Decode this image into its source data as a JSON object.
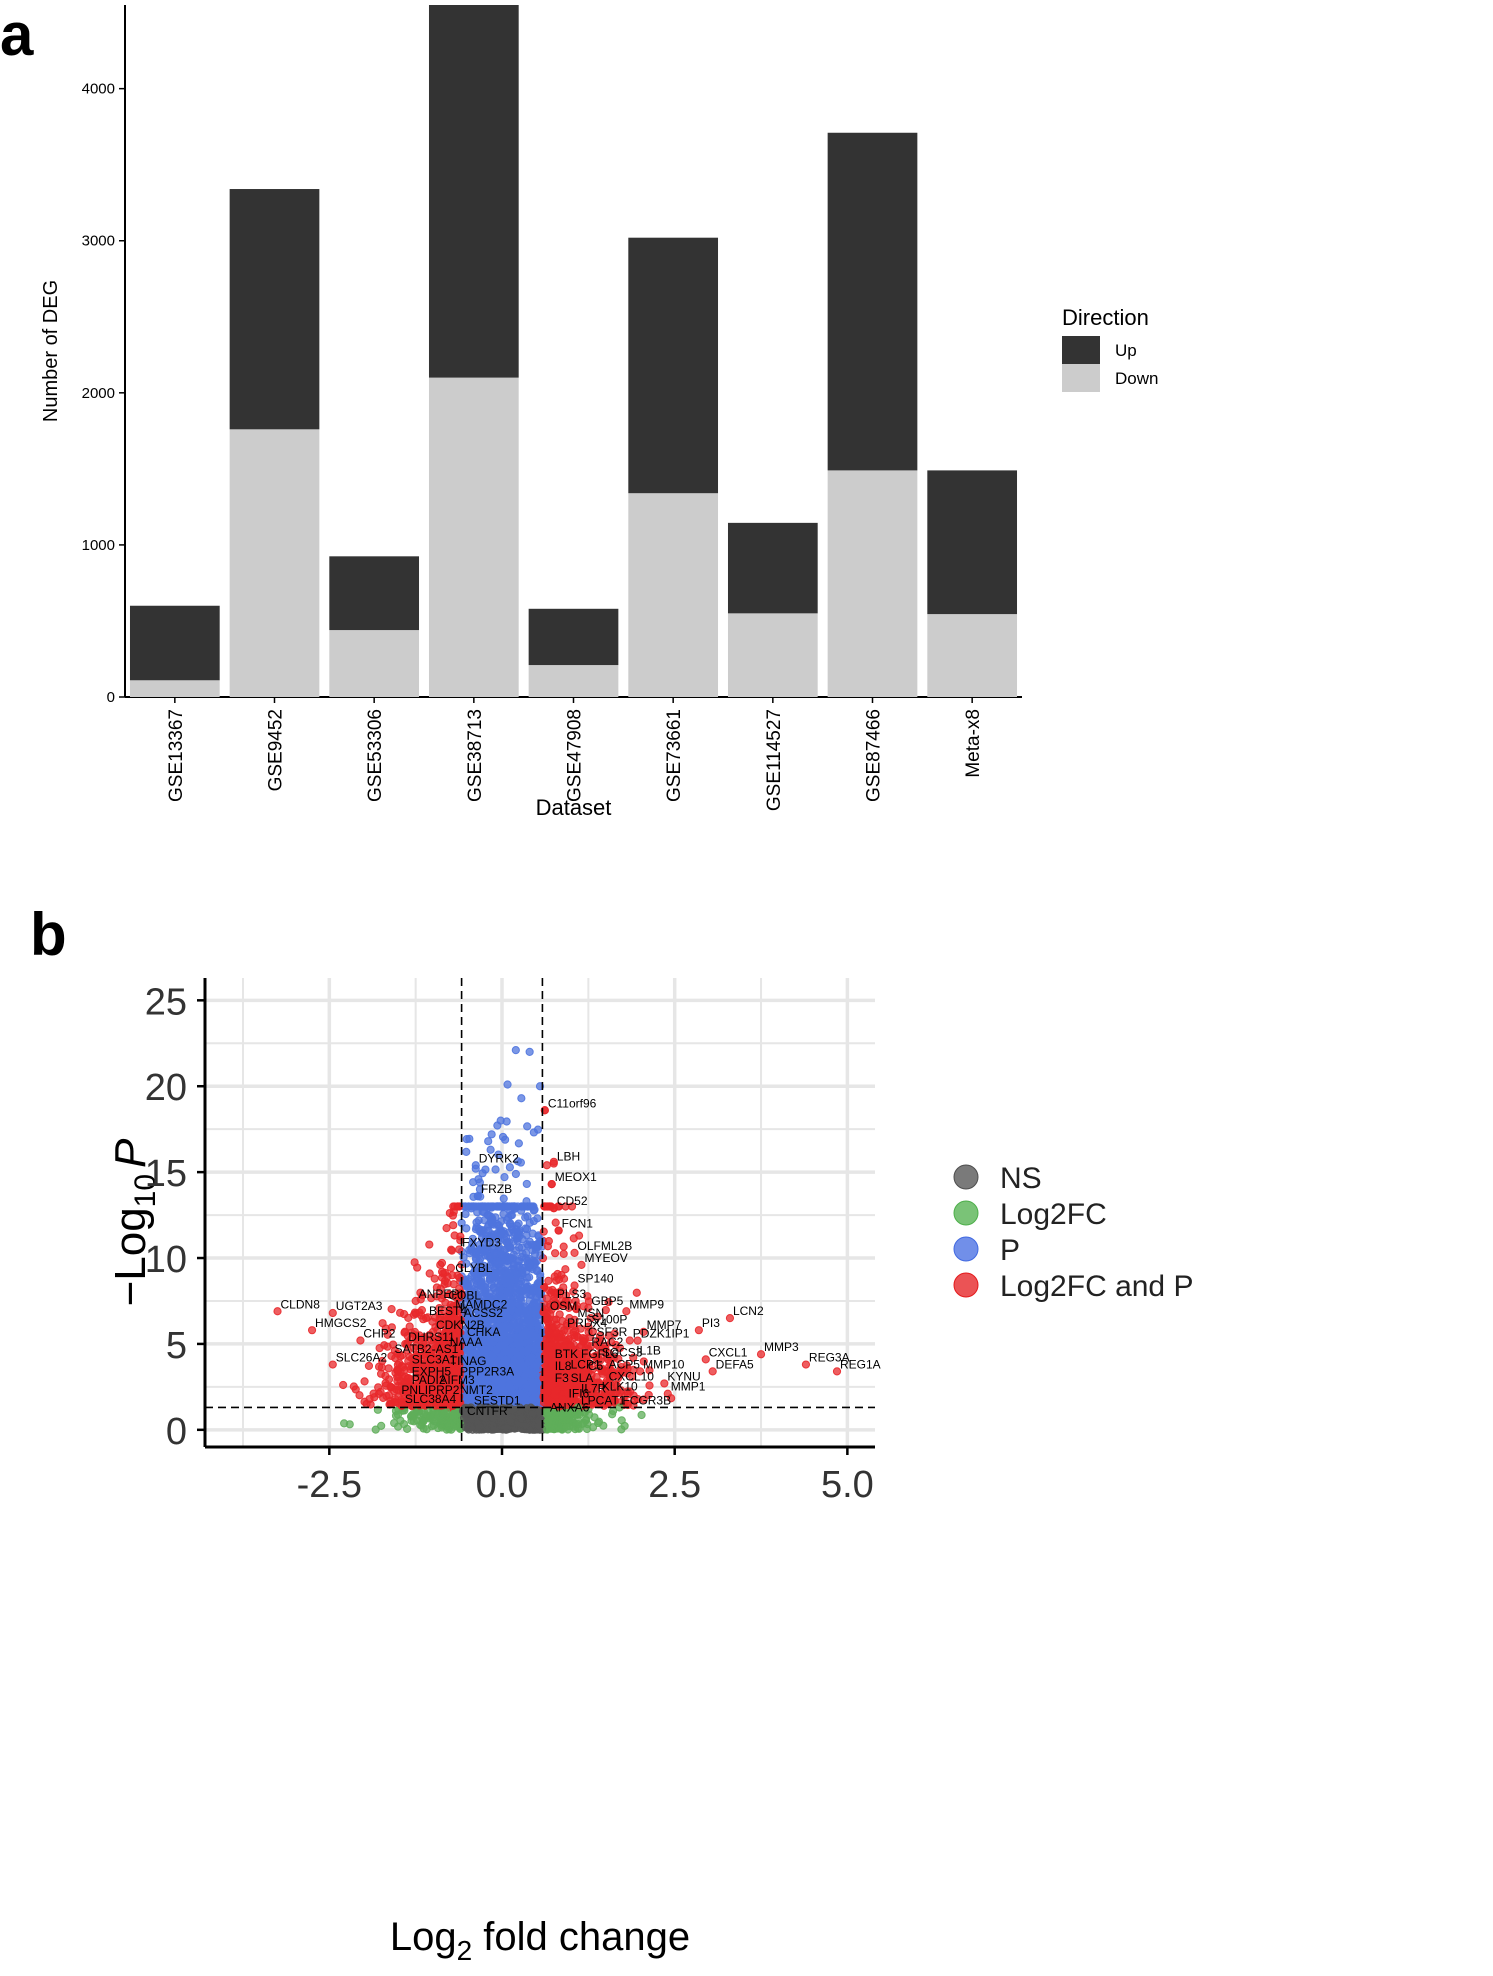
{
  "chart_data": [
    {
      "panel": "a",
      "type": "bar",
      "stacked": true,
      "xlabel": "Dataset",
      "ylabel": "Number of DEG",
      "ylim": [
        0,
        4550
      ],
      "yticks": [
        0,
        1000,
        2000,
        3000,
        4000
      ],
      "categories": [
        "GSE13367",
        "GSE9452",
        "GSE53306",
        "GSE38713",
        "GSE47908",
        "GSE73661",
        "GSE114527",
        "GSE87466",
        "Meta-x8"
      ],
      "series": [
        {
          "name": "Down",
          "color": "#cccccc",
          "values": [
            110,
            1760,
            440,
            2100,
            210,
            1340,
            550,
            1490,
            545
          ]
        },
        {
          "name": "Up",
          "color": "#333333",
          "values": [
            490,
            1580,
            485,
            2450,
            370,
            1680,
            595,
            2220,
            945
          ]
        }
      ],
      "legend": {
        "title": "Direction",
        "placement": "right",
        "items": [
          {
            "label": "Up",
            "color": "#333333"
          },
          {
            "label": "Down",
            "color": "#cccccc"
          }
        ]
      },
      "grid": false
    },
    {
      "panel": "b",
      "type": "scatter",
      "xlabel_main": "Log",
      "xlabel_sub": "2",
      "xlabel_rest": " fold change",
      "ylabel_main": "−Log",
      "ylabel_sub": "10",
      "ylabel_italic": "P",
      "xlim": [
        -4.3,
        5.4
      ],
      "ylim": [
        -1.0,
        26.3
      ],
      "xticks": [
        "-2.5",
        "0.0",
        "2.5",
        "5.0"
      ],
      "xtick_values": [
        -2.5,
        0.0,
        2.5,
        5.0
      ],
      "yticks": [
        "0",
        "5",
        "10",
        "15",
        "20",
        "25"
      ],
      "ytick_values": [
        0,
        5,
        10,
        15,
        20,
        25
      ],
      "fc_cutoffs": [
        -0.585,
        0.585
      ],
      "p_cutoff": 1.3,
      "grid": true,
      "legend": {
        "placement": "right",
        "items": [
          {
            "label": "NS",
            "color": "#4d4d4d"
          },
          {
            "label": "Log2FC",
            "color": "#4daf4a"
          },
          {
            "label": "P",
            "color": "#4169e1"
          },
          {
            "label": "Log2FC and P",
            "color": "#e41a1c"
          }
        ]
      },
      "labeled_points": [
        {
          "label": "C11orf96",
          "x": 0.62,
          "y": 18.6
        },
        {
          "label": "LBH",
          "x": 0.75,
          "y": 15.5
        },
        {
          "label": "MEOX1",
          "x": 0.72,
          "y": 14.3
        },
        {
          "label": "DYRK2",
          "x": -0.38,
          "y": 15.4
        },
        {
          "label": "FRZB",
          "x": -0.35,
          "y": 13.6
        },
        {
          "label": "CD52",
          "x": 0.75,
          "y": 12.9
        },
        {
          "label": "FCN1",
          "x": 0.82,
          "y": 11.6
        },
        {
          "label": "OLFML2B",
          "x": 1.05,
          "y": 10.3
        },
        {
          "label": "MYEOV",
          "x": 1.15,
          "y": 9.6
        },
        {
          "label": "SP140",
          "x": 1.05,
          "y": 8.4
        },
        {
          "label": "FXYD3",
          "x": -0.62,
          "y": 10.5
        },
        {
          "label": "CLYBL",
          "x": -0.72,
          "y": 9.0
        },
        {
          "label": "ANPEP",
          "x": -1.25,
          "y": 7.5
        },
        {
          "label": "COBL",
          "x": -0.82,
          "y": 7.4
        },
        {
          "label": "MAMDC2",
          "x": -0.72,
          "y": 6.9
        },
        {
          "label": "ACSS2",
          "x": -0.6,
          "y": 6.4
        },
        {
          "label": "BEST4",
          "x": -1.1,
          "y": 6.5
        },
        {
          "label": "CLDN8",
          "x": -3.25,
          "y": 6.9
        },
        {
          "label": "UGT2A3",
          "x": -2.45,
          "y": 6.8
        },
        {
          "label": "HMGCS2",
          "x": -2.75,
          "y": 5.8
        },
        {
          "label": "CHP2",
          "x": -2.05,
          "y": 5.2
        },
        {
          "label": "CDKN2B",
          "x": -1.0,
          "y": 5.7
        },
        {
          "label": "CHKA",
          "x": -0.55,
          "y": 5.3
        },
        {
          "label": "DHRS11",
          "x": -1.4,
          "y": 5.0
        },
        {
          "label": "NAAA",
          "x": -0.8,
          "y": 4.7
        },
        {
          "label": "SATB2-AS1",
          "x": -1.6,
          "y": 4.3
        },
        {
          "label": "SLC26A2",
          "x": -2.45,
          "y": 3.8
        },
        {
          "label": "SLC3A1",
          "x": -1.35,
          "y": 3.7
        },
        {
          "label": "TINAG",
          "x": -0.8,
          "y": 3.6
        },
        {
          "label": "EXPH5",
          "x": -1.35,
          "y": 3.0
        },
        {
          "label": "PPP2R3A",
          "x": -0.65,
          "y": 3.0
        },
        {
          "label": "PADI2",
          "x": -1.35,
          "y": 2.5
        },
        {
          "label": "AIFM3",
          "x": -0.95,
          "y": 2.5
        },
        {
          "label": "PNLIPRP2",
          "x": -1.5,
          "y": 1.9
        },
        {
          "label": "NMT2",
          "x": -0.65,
          "y": 1.9
        },
        {
          "label": "SLC38A4",
          "x": -1.45,
          "y": 1.4
        },
        {
          "label": "SESTD1",
          "x": -0.45,
          "y": 1.3
        },
        {
          "label": "CNTFR",
          "x": -0.55,
          "y": 0.7
        },
        {
          "label": "PLS3",
          "x": 0.75,
          "y": 7.5
        },
        {
          "label": "OSM",
          "x": 0.65,
          "y": 6.8
        },
        {
          "label": "GBP5",
          "x": 1.25,
          "y": 7.1
        },
        {
          "label": "MSN",
          "x": 1.05,
          "y": 6.4
        },
        {
          "label": "MMP9",
          "x": 1.8,
          "y": 6.9
        },
        {
          "label": "S100P",
          "x": 1.25,
          "y": 6.0
        },
        {
          "label": "MMP7",
          "x": 2.05,
          "y": 5.7
        },
        {
          "label": "PI3",
          "x": 2.85,
          "y": 5.8
        },
        {
          "label": "LCN2",
          "x": 3.3,
          "y": 6.5
        },
        {
          "label": "PRDX4",
          "x": 0.9,
          "y": 5.8
        },
        {
          "label": "CSF3R",
          "x": 1.2,
          "y": 5.3
        },
        {
          "label": "PDZK1IP1",
          "x": 1.85,
          "y": 5.2
        },
        {
          "label": "RAC2",
          "x": 1.25,
          "y": 4.7
        },
        {
          "label": "BTK",
          "x": 0.72,
          "y": 4.0
        },
        {
          "label": "FGFL6",
          "x": 1.1,
          "y": 4.0
        },
        {
          "label": "SOCS3",
          "x": 1.4,
          "y": 4.1
        },
        {
          "label": "IL1B",
          "x": 1.9,
          "y": 4.2
        },
        {
          "label": "CXCL1",
          "x": 2.95,
          "y": 4.1
        },
        {
          "label": "MMP3",
          "x": 3.75,
          "y": 4.4
        },
        {
          "label": "REG3A",
          "x": 4.4,
          "y": 3.8
        },
        {
          "label": "REG1A",
          "x": 4.85,
          "y": 3.4
        },
        {
          "label": "IL8",
          "x": 0.72,
          "y": 3.3
        },
        {
          "label": "LCP1",
          "x": 0.95,
          "y": 3.4
        },
        {
          "label": "C5",
          "x": 1.2,
          "y": 3.3
        },
        {
          "label": "ACP5",
          "x": 1.5,
          "y": 3.4
        },
        {
          "label": "MMP10",
          "x": 2.0,
          "y": 3.4
        },
        {
          "label": "DEFA5",
          "x": 3.05,
          "y": 3.4
        },
        {
          "label": "F3",
          "x": 0.72,
          "y": 2.6
        },
        {
          "label": "SLA",
          "x": 0.95,
          "y": 2.6
        },
        {
          "label": "CXCL10",
          "x": 1.5,
          "y": 2.7
        },
        {
          "label": "KYNU",
          "x": 2.35,
          "y": 2.7
        },
        {
          "label": "IL7R",
          "x": 1.1,
          "y": 2.0
        },
        {
          "label": "KLK10",
          "x": 1.4,
          "y": 2.1
        },
        {
          "label": "MMP1",
          "x": 2.4,
          "y": 2.1
        },
        {
          "label": "IFI6",
          "x": 0.92,
          "y": 1.7
        },
        {
          "label": "LPCAT1",
          "x": 1.1,
          "y": 1.3
        },
        {
          "label": "FCGR3B",
          "x": 1.7,
          "y": 1.3
        },
        {
          "label": "ANXA6",
          "x": 0.65,
          "y": 0.9
        }
      ]
    }
  ],
  "figure": {
    "panel_a_label": "a",
    "panel_b_label": "b"
  }
}
